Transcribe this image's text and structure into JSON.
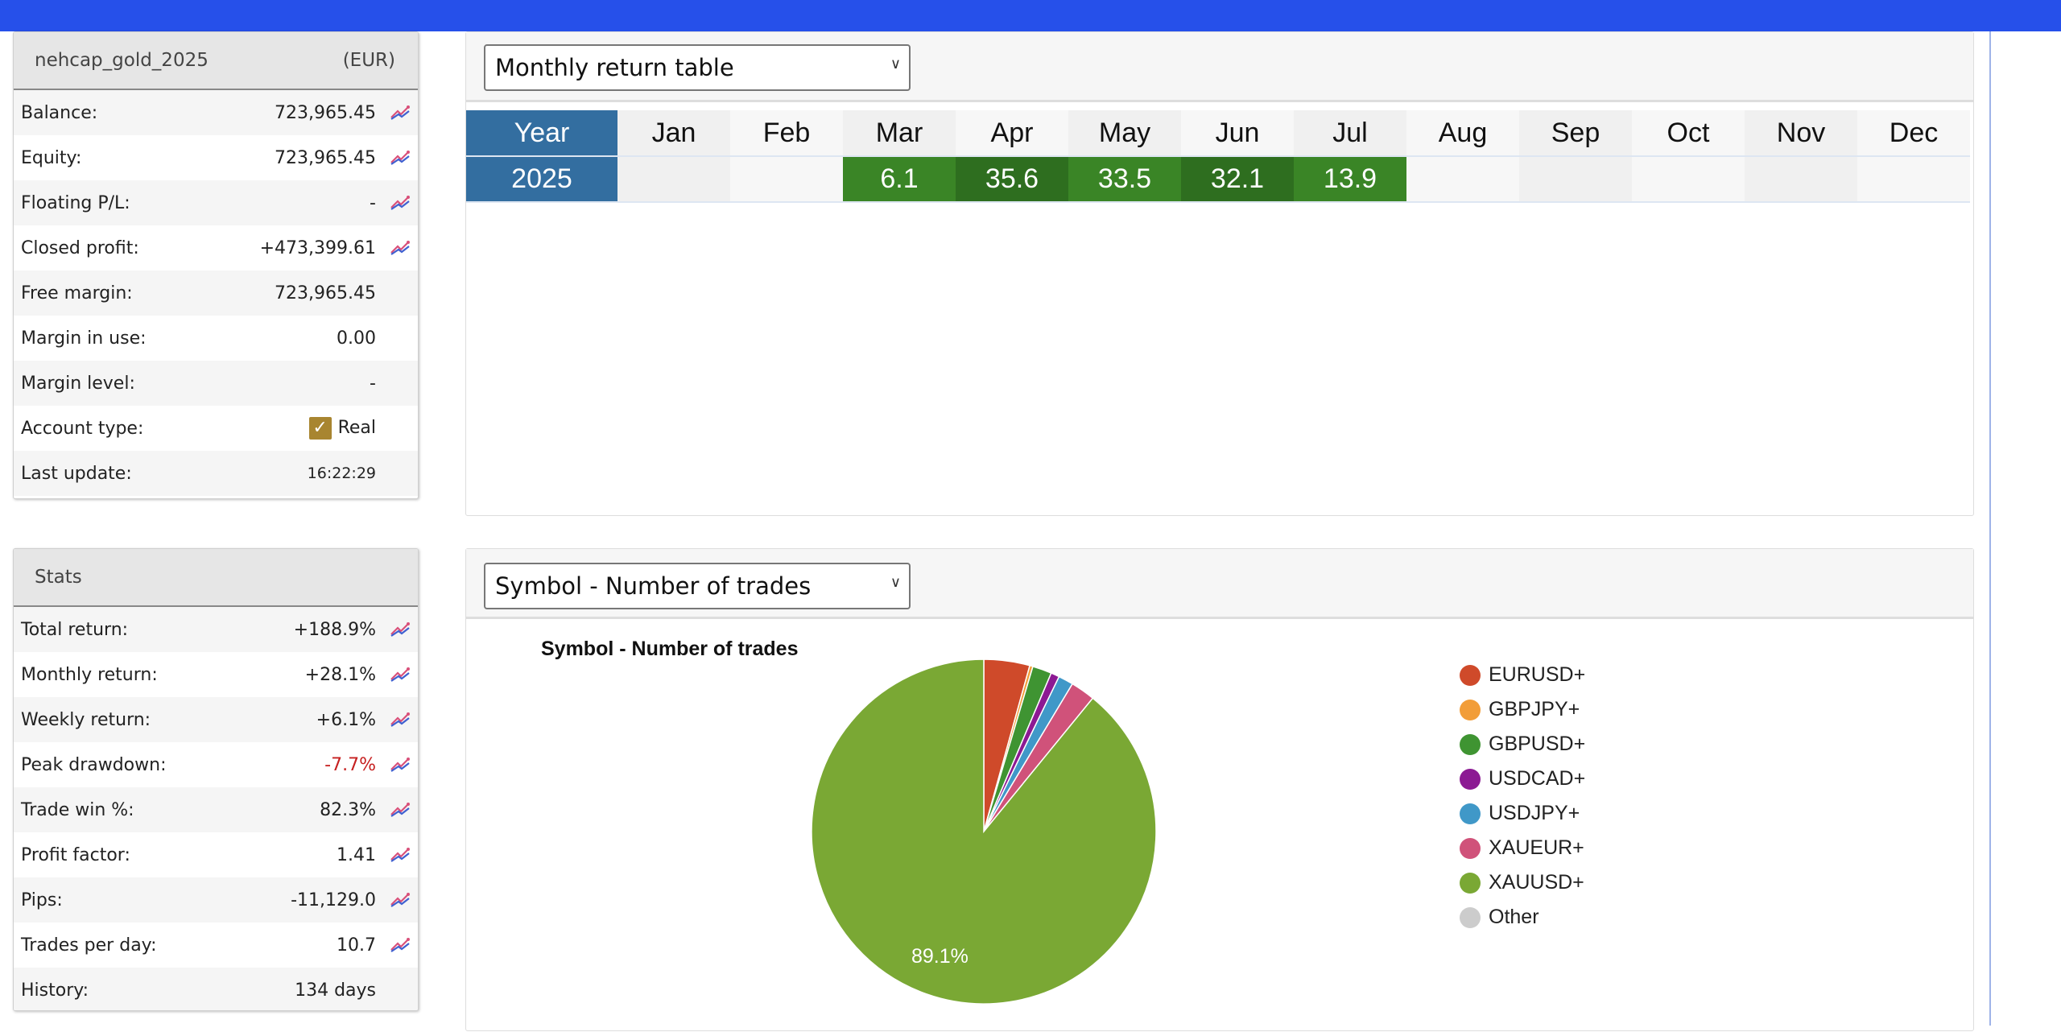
{
  "account": {
    "name": "nehcap_gold_2025",
    "currency": "(EUR)",
    "rows": [
      {
        "label": "Balance:",
        "value": "723,965.45",
        "chart": true
      },
      {
        "label": "Equity:",
        "value": "723,965.45",
        "chart": true
      },
      {
        "label": "Floating P/L:",
        "value": "-",
        "chart": true
      },
      {
        "label": "Closed profit:",
        "value": "+473,399.61",
        "chart": true
      },
      {
        "label": "Free margin:",
        "value": "723,965.45",
        "chart": false
      },
      {
        "label": "Margin in use:",
        "value": "0.00",
        "chart": false
      },
      {
        "label": "Margin level:",
        "value": "-",
        "chart": false
      },
      {
        "label": "Account type:",
        "value": "Real",
        "chart": false
      },
      {
        "label": "Last update:",
        "value": "16:22:29",
        "chart": false
      }
    ]
  },
  "stats": {
    "title": "Stats",
    "rows": [
      {
        "label": "Total return:",
        "value": "+188.9%",
        "chart": true
      },
      {
        "label": "Monthly return:",
        "value": "+28.1%",
        "chart": true
      },
      {
        "label": "Weekly return:",
        "value": "+6.1%",
        "chart": true
      },
      {
        "label": "Peak drawdown:",
        "value": "-7.7%",
        "chart": true
      },
      {
        "label": "Trade win %:",
        "value": "82.3%",
        "chart": true
      },
      {
        "label": "Profit factor:",
        "value": "1.41",
        "chart": true
      },
      {
        "label": "Pips:",
        "value": "-11,129.0",
        "chart": true
      },
      {
        "label": "Trades per day:",
        "value": "10.7",
        "chart": true
      },
      {
        "label": "History:",
        "value": "134 days",
        "chart": false
      }
    ]
  },
  "monthly": {
    "select": "Monthly return table",
    "header": [
      "Year",
      "Jan",
      "Feb",
      "Mar",
      "Apr",
      "May",
      "Jun",
      "Jul",
      "Aug",
      "Sep",
      "Oct",
      "Nov",
      "Dec"
    ],
    "year": "2025",
    "values": [
      "",
      "",
      "6.1",
      "35.6",
      "33.5",
      "32.1",
      "13.9",
      "",
      "",
      "",
      "",
      ""
    ]
  },
  "symbols": {
    "select": "Symbol - Number of trades",
    "slice_label": "89.1%"
  },
  "chart_data": {
    "type": "pie",
    "title": "Symbol - Number of trades",
    "legend": "right",
    "labels": [
      "EURUSD+",
      "GBPJPY+",
      "GBPUSD+",
      "USDCAD+",
      "USDJPY+",
      "XAUEUR+",
      "XAUUSD+",
      "Other"
    ],
    "values": [
      4.3,
      0.3,
      1.8,
      0.8,
      1.4,
      2.3,
      89.1,
      0
    ],
    "colors": [
      "#cf4a2a",
      "#f29d38",
      "#3f9432",
      "#8c1a93",
      "#4098c8",
      "#d0527a",
      "#7aa834",
      "#cccccc"
    ]
  }
}
